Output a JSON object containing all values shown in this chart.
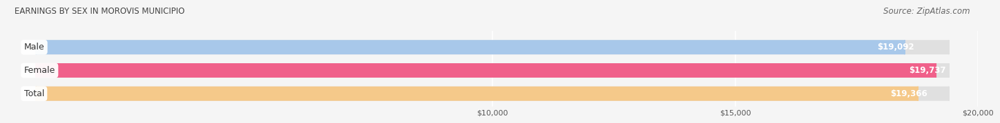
{
  "title": "EARNINGS BY SEX IN MOROVIS MUNICIPIO",
  "source": "Source: ZipAtlas.com",
  "categories": [
    "Male",
    "Female",
    "Total"
  ],
  "values": [
    19092,
    19737,
    19366
  ],
  "bar_colors": [
    "#a8c8ea",
    "#f0608a",
    "#f5c98a"
  ],
  "label_values": [
    "$19,092",
    "$19,737",
    "$19,366"
  ],
  "x_min": 0,
  "x_max": 20000,
  "x_ticks": [
    10000,
    15000,
    20000
  ],
  "x_tick_labels": [
    "$10,000",
    "$15,000",
    "$20,000"
  ],
  "background_color": "#f5f5f5",
  "bar_bg_color": "#e0e0e0",
  "title_fontsize": 8.5,
  "source_fontsize": 8.5,
  "bar_label_fontsize": 8.5,
  "category_fontsize": 9
}
